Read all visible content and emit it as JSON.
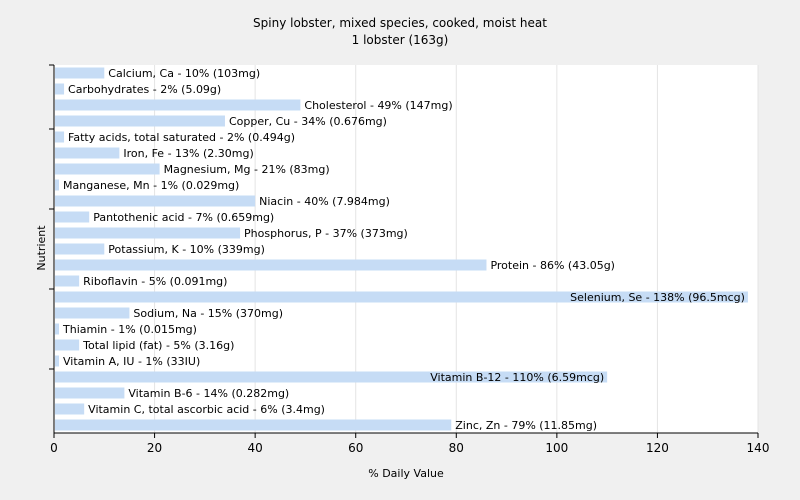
{
  "chart_data": {
    "type": "bar",
    "orientation": "horizontal",
    "title": "Spiny lobster, mixed species, cooked, moist heat",
    "subtitle": "1 lobster (163g)",
    "xlabel": "% Daily Value",
    "ylabel": "Nutrient",
    "xlim": [
      0,
      140
    ],
    "xticks": [
      0,
      20,
      40,
      60,
      80,
      100,
      120,
      140
    ],
    "grid": true,
    "bar_color": "#c6dcf5",
    "categories": [
      "Calcium, Ca",
      "Carbohydrates",
      "Cholesterol",
      "Copper, Cu",
      "Fatty acids, total saturated",
      "Iron, Fe",
      "Magnesium, Mg",
      "Manganese, Mn",
      "Niacin",
      "Pantothenic acid",
      "Phosphorus, P",
      "Potassium, K",
      "Protein",
      "Riboflavin",
      "Selenium, Se",
      "Sodium, Na",
      "Thiamin",
      "Total lipid (fat)",
      "Vitamin A, IU",
      "Vitamin B-12",
      "Vitamin B-6",
      "Vitamin C, total ascorbic acid",
      "Zinc, Zn"
    ],
    "values": [
      10,
      2,
      49,
      34,
      2,
      13,
      21,
      1,
      40,
      7,
      37,
      10,
      86,
      5,
      138,
      15,
      1,
      5,
      1,
      110,
      14,
      6,
      79
    ],
    "labels": [
      "Calcium, Ca - 10% (103mg)",
      "Carbohydrates - 2% (5.09g)",
      "Cholesterol - 49% (147mg)",
      "Copper, Cu - 34% (0.676mg)",
      "Fatty acids, total saturated - 2% (0.494g)",
      "Iron, Fe - 13% (2.30mg)",
      "Magnesium, Mg - 21% (83mg)",
      "Manganese, Mn - 1% (0.029mg)",
      "Niacin - 40% (7.984mg)",
      "Pantothenic acid - 7% (0.659mg)",
      "Phosphorus, P - 37% (373mg)",
      "Potassium, K - 10% (339mg)",
      "Protein - 86% (43.05g)",
      "Riboflavin - 5% (0.091mg)",
      "Selenium, Se - 138% (96.5mcg)",
      "Sodium, Na - 15% (370mg)",
      "Thiamin - 1% (0.015mg)",
      "Total lipid (fat) - 5% (3.16g)",
      "Vitamin A, IU - 1% (33IU)",
      "Vitamin B-12 - 110% (6.59mcg)",
      "Vitamin B-6 - 14% (0.282mg)",
      "Vitamin C, total ascorbic acid - 6% (3.4mg)",
      "Zinc, Zn - 79% (11.85mg)"
    ]
  }
}
